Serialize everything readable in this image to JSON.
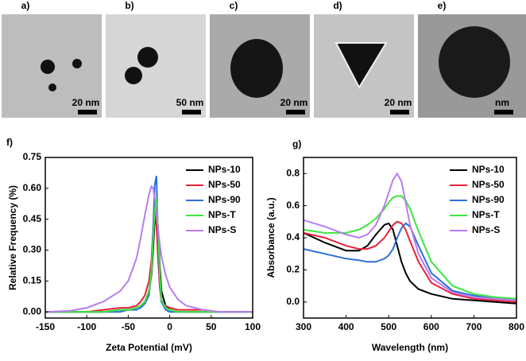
{
  "panels": [
    {
      "label": "a)",
      "scale": "20 nm"
    },
    {
      "label": "b)",
      "scale": "50 nm"
    },
    {
      "label": "c)",
      "scale": "20 nm"
    },
    {
      "label": "d)",
      "scale": "20 nm"
    },
    {
      "label": "e)",
      "scale": "nm"
    }
  ],
  "chart_data": [
    {
      "type": "line",
      "label": "f)",
      "x_label": "Zeta Potential (mV)",
      "y_label": "Relative Frequency (%)",
      "x": [
        -150,
        -120,
        -100,
        -80,
        -60,
        -50,
        -40,
        -35,
        -30,
        -25,
        -22,
        -20,
        -18,
        -16,
        -14,
        -12,
        -10,
        -5,
        0,
        10,
        20,
        40,
        60,
        80,
        100
      ],
      "series": [
        {
          "name": "NPs-10",
          "color": "#000000",
          "values": [
            0,
            0,
            0,
            0,
            0.01,
            0.01,
            0.02,
            0.03,
            0.05,
            0.1,
            0.18,
            0.3,
            0.45,
            0.52,
            0.4,
            0.22,
            0.1,
            0.03,
            0.01,
            0,
            0,
            0,
            0,
            0,
            0
          ]
        },
        {
          "name": "NPs-50",
          "color": "#e8213a",
          "values": [
            0,
            0,
            0,
            0.01,
            0.02,
            0.02,
            0.03,
            0.05,
            0.08,
            0.15,
            0.25,
            0.4,
            0.5,
            0.42,
            0.25,
            0.12,
            0.05,
            0.03,
            0.02,
            0.01,
            0.01,
            0.01,
            0,
            0,
            0
          ]
        },
        {
          "name": "NPs-90",
          "color": "#2d6fd6",
          "values": [
            0,
            0,
            0,
            0,
            0,
            0.01,
            0.01,
            0.02,
            0.04,
            0.08,
            0.2,
            0.4,
            0.62,
            0.66,
            0.35,
            0.15,
            0.05,
            0.01,
            0,
            0,
            0,
            0,
            0,
            0,
            0
          ]
        },
        {
          "name": "NPs-T",
          "color": "#3de63d",
          "values": [
            0,
            0,
            0,
            0,
            0.01,
            0.01,
            0.02,
            0.03,
            0.05,
            0.1,
            0.2,
            0.35,
            0.5,
            0.55,
            0.4,
            0.18,
            0.06,
            0.02,
            0.01,
            0,
            0,
            0,
            0,
            0,
            0
          ]
        },
        {
          "name": "NPs-S",
          "color": "#b77cf0",
          "values": [
            0,
            0.005,
            0.02,
            0.05,
            0.1,
            0.15,
            0.26,
            0.36,
            0.47,
            0.57,
            0.61,
            0.6,
            0.55,
            0.48,
            0.4,
            0.33,
            0.27,
            0.18,
            0.12,
            0.06,
            0.03,
            0.01,
            0,
            0,
            0
          ]
        }
      ],
      "xlim": [
        -150,
        100
      ],
      "xticks": [
        -150,
        -100,
        -50,
        0,
        50,
        100
      ],
      "ylim": [
        -0.03,
        0.75
      ],
      "yticks": [
        {
          "value": 0,
          "label": "0.00"
        },
        {
          "value": 0.15,
          "label": "0.15"
        },
        {
          "value": 0.3,
          "label": "0.30"
        },
        {
          "value": 0.45,
          "label": "0.45"
        },
        {
          "value": 0.6,
          "label": "0.60"
        },
        {
          "value": 0.75,
          "label": "0.75"
        }
      ],
      "legend": "upper right"
    },
    {
      "type": "line",
      "label": "g)",
      "x_label": "Wavelength (nm)",
      "y_label": "Absorbance (a.u.)",
      "x": [
        300,
        350,
        400,
        430,
        450,
        470,
        490,
        500,
        510,
        520,
        530,
        540,
        550,
        570,
        600,
        650,
        700,
        750,
        800
      ],
      "series": [
        {
          "name": "NPs-10",
          "color": "#000000",
          "values": [
            0.43,
            0.37,
            0.32,
            0.32,
            0.35,
            0.42,
            0.48,
            0.49,
            0.45,
            0.35,
            0.25,
            0.18,
            0.13,
            0.08,
            0.05,
            0.02,
            0.01,
            0,
            -0.01
          ]
        },
        {
          "name": "NPs-50",
          "color": "#e8213a",
          "values": [
            0.43,
            0.4,
            0.35,
            0.33,
            0.33,
            0.35,
            0.4,
            0.44,
            0.48,
            0.5,
            0.49,
            0.45,
            0.38,
            0.25,
            0.12,
            0.05,
            0.02,
            0.01,
            0
          ]
        },
        {
          "name": "NPs-90",
          "color": "#2d6fd6",
          "values": [
            0.33,
            0.3,
            0.27,
            0.26,
            0.25,
            0.25,
            0.27,
            0.29,
            0.33,
            0.4,
            0.46,
            0.49,
            0.47,
            0.35,
            0.18,
            0.07,
            0.04,
            0.02,
            0.02
          ]
        },
        {
          "name": "NPs-T",
          "color": "#3de63d",
          "values": [
            0.45,
            0.43,
            0.43,
            0.45,
            0.48,
            0.52,
            0.58,
            0.62,
            0.65,
            0.66,
            0.66,
            0.63,
            0.58,
            0.44,
            0.25,
            0.1,
            0.05,
            0.03,
            0.02
          ]
        },
        {
          "name": "NPs-S",
          "color": "#b77cf0",
          "values": [
            0.51,
            0.47,
            0.42,
            0.4,
            0.42,
            0.48,
            0.6,
            0.68,
            0.76,
            0.8,
            0.75,
            0.62,
            0.48,
            0.3,
            0.15,
            0.06,
            0.03,
            0.02,
            0.01
          ]
        }
      ],
      "xlim": [
        300,
        800
      ],
      "xticks": [
        300,
        400,
        500,
        600,
        700,
        800
      ],
      "ylim": [
        -0.1,
        0.9
      ],
      "yticks": [
        {
          "value": 0,
          "label": "0.0"
        },
        {
          "value": 0.2,
          "label": "0.2"
        },
        {
          "value": 0.4,
          "label": "0.4"
        },
        {
          "value": 0.6,
          "label": "0.6"
        },
        {
          "value": 0.8,
          "label": "0.8"
        }
      ],
      "legend": "upper right"
    }
  ]
}
